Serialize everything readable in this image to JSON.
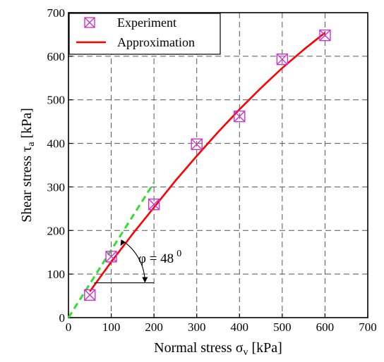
{
  "colors": {
    "experiment": "#cc33cc",
    "approximation": "#ff0000",
    "tangent": "#33dd33",
    "grid": "#555555",
    "axis": "#000000"
  },
  "chart_data": {
    "type": "scatter",
    "x_axis": {
      "label_main": "Normal stress σ",
      "label_sub": "v",
      "label_unit": " [kPa]",
      "lim": [
        0,
        700
      ],
      "ticks": [
        "0",
        "100",
        "200",
        "300",
        "400",
        "500",
        "600",
        "700"
      ]
    },
    "y_axis": {
      "label_main": "Shear stress τ",
      "label_sub": "a",
      "label_unit": " [kPa]",
      "lim": [
        0,
        700
      ],
      "ticks": [
        "0",
        "100",
        "200",
        "300",
        "400",
        "500",
        "600",
        "700"
      ]
    },
    "grid": true,
    "legend_position": "top-left",
    "series": [
      {
        "name": "Experiment",
        "kind": "markers",
        "marker": "boxed-x",
        "x": [
          50,
          100,
          200,
          300,
          400,
          500,
          600
        ],
        "y": [
          52,
          140,
          260,
          398,
          462,
          593,
          648
        ]
      },
      {
        "name": "Approximation",
        "kind": "line",
        "x": [
          50,
          100,
          150,
          200,
          250,
          300,
          350,
          400,
          450,
          500,
          550,
          600
        ],
        "y": [
          60,
          128,
          192,
          253,
          314,
          371,
          426,
          478,
          527,
          573,
          615,
          654
        ]
      },
      {
        "kind": "dashed-line",
        "x": [
          0,
          200
        ],
        "y": [
          0,
          310
        ]
      }
    ],
    "annotation": {
      "text": "φ = 48",
      "superscript": "0",
      "ref_line": {
        "x": [
          60,
          200
        ],
        "y": [
          80,
          80
        ]
      },
      "arc_center": [
        60,
        80
      ]
    }
  }
}
